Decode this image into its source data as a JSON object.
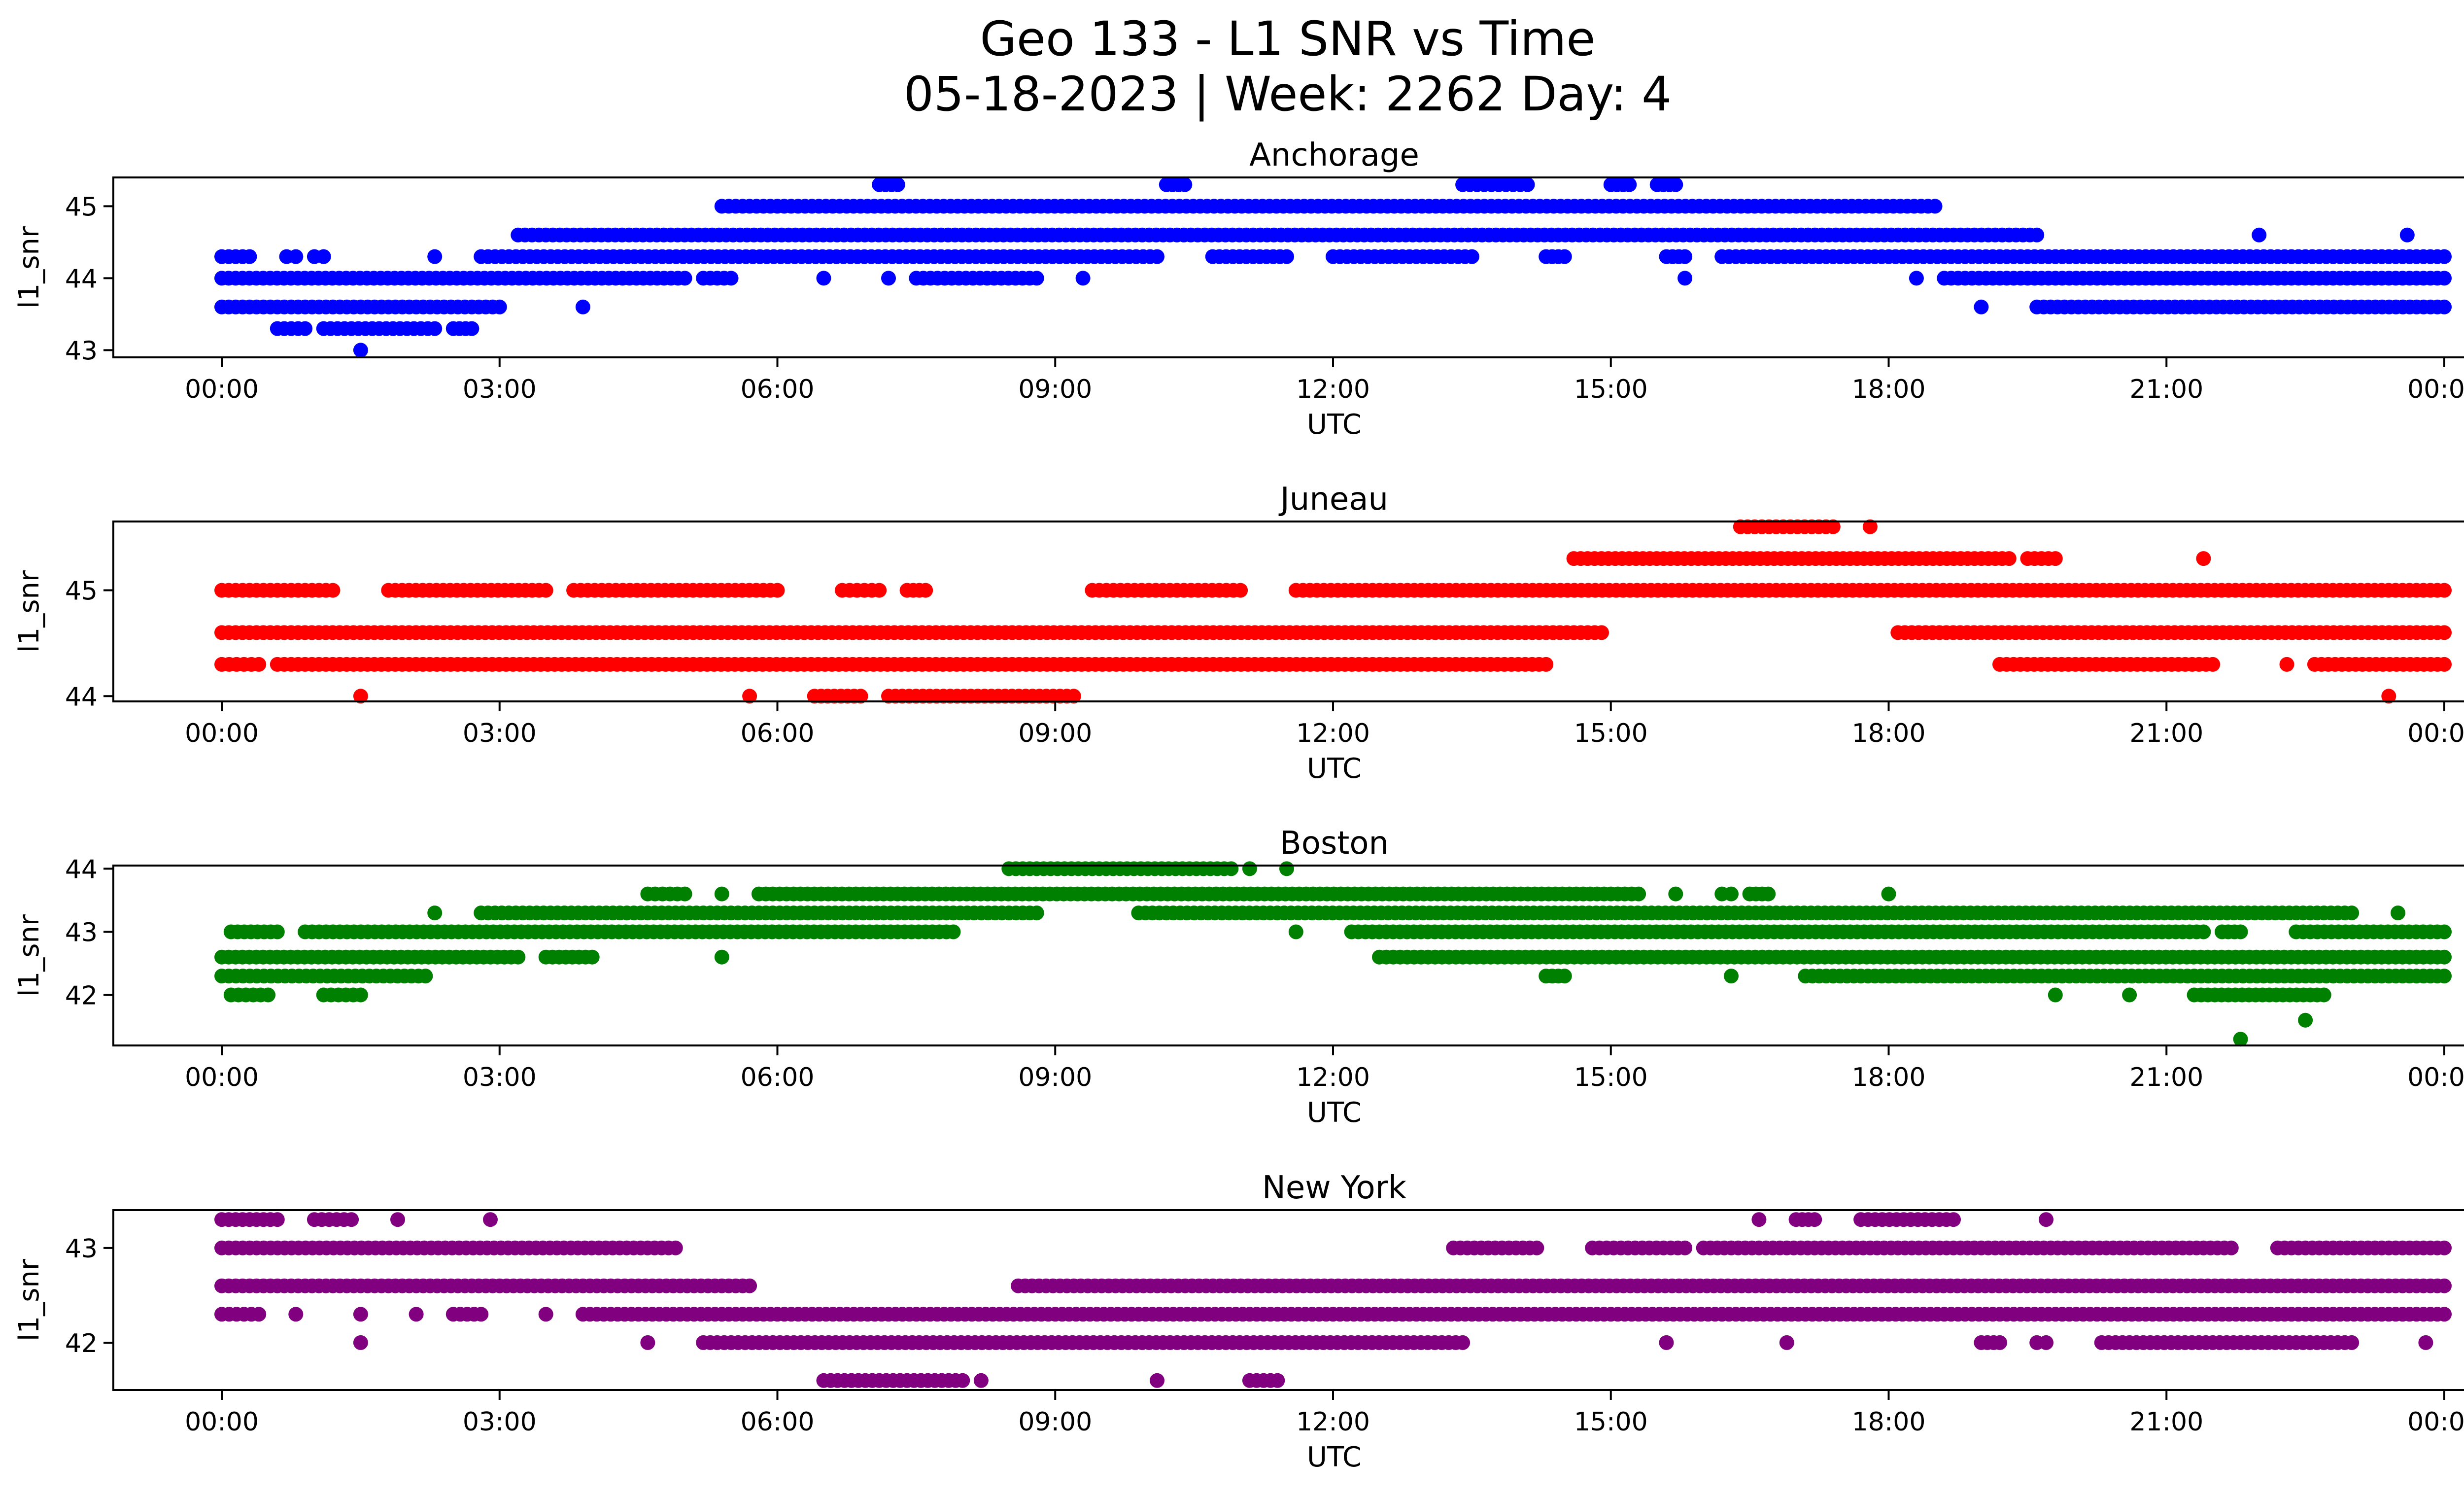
{
  "figure": {
    "title_line1": "Geo 133 - L1 SNR vs Time",
    "title_line2": "05-18-2023 | Week: 2262 Day: 4"
  },
  "chart_data": [
    {
      "type": "scatter",
      "title": "Anchorage",
      "xlabel": "UTC",
      "ylabel": "l1_snr",
      "color": "#0000ff",
      "xlim": [
        "00:00",
        "24:00"
      ],
      "x_ticks": [
        "00:00",
        "03:00",
        "06:00",
        "09:00",
        "12:00",
        "15:00",
        "18:00",
        "21:00",
        "00:00"
      ],
      "ylim": [
        42.9,
        45.4
      ],
      "y_ticks": [
        43,
        44,
        45
      ],
      "points_note": "x values in hours UTC on 05-18-2023",
      "series": [
        {
          "level": 43.0,
          "segments": [
            [
              1.5,
              1.5
            ]
          ]
        },
        {
          "level": 43.3,
          "segments": [
            [
              0.6,
              0.9
            ],
            [
              1.1,
              2.3
            ],
            [
              2.5,
              2.7
            ]
          ]
        },
        {
          "level": 43.6,
          "segments": [
            [
              0.0,
              3.0
            ],
            [
              3.9,
              3.9
            ],
            [
              19.0,
              19.0
            ],
            [
              19.6,
              24.0
            ]
          ]
        },
        {
          "level": 44.0,
          "segments": [
            [
              0.0,
              5.0
            ],
            [
              5.2,
              5.5
            ],
            [
              6.5,
              6.5
            ],
            [
              7.2,
              7.2
            ],
            [
              7.5,
              8.8
            ],
            [
              9.3,
              9.3
            ],
            [
              15.8,
              15.8
            ],
            [
              18.3,
              18.3
            ],
            [
              18.6,
              24.0
            ]
          ]
        },
        {
          "level": 44.3,
          "segments": [
            [
              0.0,
              0.3
            ],
            [
              0.7,
              0.8
            ],
            [
              1.0,
              1.1
            ],
            [
              2.3,
              2.3
            ],
            [
              2.8,
              10.1
            ],
            [
              10.7,
              11.5
            ],
            [
              12.0,
              13.5
            ],
            [
              14.3,
              14.5
            ],
            [
              15.6,
              15.8
            ],
            [
              16.2,
              24.0
            ]
          ]
        },
        {
          "level": 44.6,
          "segments": [
            [
              3.2,
              19.6
            ],
            [
              22.0,
              22.0
            ],
            [
              23.6,
              23.6
            ]
          ]
        },
        {
          "level": 45.0,
          "segments": [
            [
              5.4,
              18.5
            ]
          ]
        },
        {
          "level": 45.3,
          "segments": [
            [
              7.1,
              7.3
            ],
            [
              10.2,
              10.4
            ],
            [
              13.4,
              14.1
            ],
            [
              15.0,
              15.2
            ],
            [
              15.5,
              15.7
            ]
          ]
        }
      ]
    },
    {
      "type": "scatter",
      "title": "Juneau",
      "xlabel": "UTC",
      "ylabel": "l1_snr",
      "color": "#ff0000",
      "xlim": [
        "00:00",
        "24:00"
      ],
      "x_ticks": [
        "00:00",
        "03:00",
        "06:00",
        "09:00",
        "12:00",
        "15:00",
        "18:00",
        "21:00",
        "00:00"
      ],
      "ylim": [
        43.95,
        45.65
      ],
      "y_ticks": [
        44,
        45
      ],
      "points_note": "x values in hours UTC on 05-18-2023",
      "series": [
        {
          "level": 44.0,
          "segments": [
            [
              1.5,
              1.5
            ],
            [
              5.7,
              5.7
            ],
            [
              6.4,
              6.9
            ],
            [
              7.2,
              9.2
            ],
            [
              23.4,
              23.4
            ]
          ]
        },
        {
          "level": 44.3,
          "segments": [
            [
              0.0,
              0.4
            ],
            [
              0.6,
              14.3
            ],
            [
              19.2,
              21.5
            ],
            [
              22.3,
              22.3
            ],
            [
              22.6,
              24.0
            ]
          ]
        },
        {
          "level": 44.6,
          "segments": [
            [
              0.0,
              14.9
            ],
            [
              18.1,
              24.0
            ]
          ]
        },
        {
          "level": 45.0,
          "segments": [
            [
              0.0,
              1.2
            ],
            [
              1.8,
              3.5
            ],
            [
              3.8,
              6.0
            ],
            [
              6.7,
              7.1
            ],
            [
              7.4,
              7.6
            ],
            [
              9.4,
              11.0
            ],
            [
              11.6,
              24.0
            ]
          ]
        },
        {
          "level": 45.3,
          "segments": [
            [
              14.6,
              19.3
            ],
            [
              19.5,
              19.8
            ],
            [
              21.4,
              21.4
            ]
          ]
        },
        {
          "level": 45.6,
          "segments": [
            [
              16.4,
              17.4
            ],
            [
              17.8,
              17.8
            ]
          ]
        }
      ]
    },
    {
      "type": "scatter",
      "title": "Boston",
      "xlabel": "UTC",
      "ylabel": "l1_snr",
      "color": "#008000",
      "xlim": [
        "00:00",
        "24:00"
      ],
      "x_ticks": [
        "00:00",
        "03:00",
        "06:00",
        "09:00",
        "12:00",
        "15:00",
        "18:00",
        "21:00",
        "00:00"
      ],
      "ylim": [
        41.2,
        44.05
      ],
      "y_ticks": [
        42,
        43,
        44
      ],
      "points_note": "x values in hours UTC on 05-18-2023",
      "series": [
        {
          "level": 41.3,
          "segments": [
            [
              21.8,
              21.8
            ]
          ]
        },
        {
          "level": 41.6,
          "segments": [
            [
              22.5,
              22.5
            ]
          ]
        },
        {
          "level": 42.0,
          "segments": [
            [
              0.1,
              0.5
            ],
            [
              1.1,
              1.5
            ],
            [
              19.8,
              19.8
            ],
            [
              20.6,
              20.6
            ],
            [
              21.3,
              22.7
            ]
          ]
        },
        {
          "level": 42.3,
          "segments": [
            [
              0.0,
              2.2
            ],
            [
              14.3,
              14.5
            ],
            [
              16.3,
              16.3
            ],
            [
              17.1,
              24.0
            ]
          ]
        },
        {
          "level": 42.6,
          "segments": [
            [
              0.0,
              3.2
            ],
            [
              3.5,
              4.0
            ],
            [
              5.4,
              5.4
            ],
            [
              12.5,
              24.0
            ]
          ]
        },
        {
          "level": 43.0,
          "segments": [
            [
              0.1,
              0.6
            ],
            [
              0.9,
              7.9
            ],
            [
              11.6,
              11.6
            ],
            [
              12.2,
              21.4
            ],
            [
              21.6,
              21.8
            ],
            [
              22.4,
              24.0
            ]
          ]
        },
        {
          "level": 43.3,
          "segments": [
            [
              2.3,
              2.3
            ],
            [
              2.8,
              8.8
            ],
            [
              9.9,
              23.0
            ],
            [
              23.5,
              23.5
            ]
          ]
        },
        {
          "level": 43.6,
          "segments": [
            [
              4.6,
              5.0
            ],
            [
              5.4,
              5.4
            ],
            [
              5.8,
              15.3
            ],
            [
              15.7,
              15.7
            ],
            [
              16.2,
              16.3
            ],
            [
              16.5,
              16.7
            ],
            [
              18.0,
              18.0
            ]
          ]
        },
        {
          "level": 44.0,
          "segments": [
            [
              8.5,
              10.9
            ],
            [
              11.1,
              11.1
            ],
            [
              11.5,
              11.5
            ]
          ]
        }
      ]
    },
    {
      "type": "scatter",
      "title": "New York",
      "xlabel": "UTC",
      "ylabel": "l1_snr",
      "color": "#800080",
      "xlim": [
        "00:00",
        "24:00"
      ],
      "x_ticks": [
        "00:00",
        "03:00",
        "06:00",
        "09:00",
        "12:00",
        "15:00",
        "18:00",
        "21:00",
        "00:00"
      ],
      "ylim": [
        41.5,
        43.4
      ],
      "y_ticks": [
        42,
        43
      ],
      "points_note": "x values in hours UTC on 05-18-2023",
      "series": [
        {
          "level": 41.6,
          "segments": [
            [
              6.5,
              8.0
            ],
            [
              8.2,
              8.2
            ],
            [
              10.1,
              10.1
            ],
            [
              11.1,
              11.4
            ]
          ]
        },
        {
          "level": 42.0,
          "segments": [
            [
              1.5,
              1.5
            ],
            [
              4.6,
              4.6
            ],
            [
              5.2,
              13.4
            ],
            [
              15.6,
              15.6
            ],
            [
              16.9,
              16.9
            ],
            [
              19.0,
              19.2
            ],
            [
              19.6,
              19.7
            ],
            [
              20.3,
              23.0
            ],
            [
              23.8,
              23.8
            ]
          ]
        },
        {
          "level": 42.3,
          "segments": [
            [
              0.0,
              0.4
            ],
            [
              0.8,
              0.8
            ],
            [
              1.5,
              1.5
            ],
            [
              2.1,
              2.1
            ],
            [
              2.5,
              2.8
            ],
            [
              3.5,
              3.5
            ],
            [
              3.9,
              24.0
            ]
          ]
        },
        {
          "level": 42.6,
          "segments": [
            [
              0.0,
              5.7
            ],
            [
              8.6,
              24.0
            ]
          ]
        },
        {
          "level": 43.0,
          "segments": [
            [
              0.0,
              4.9
            ],
            [
              13.3,
              14.2
            ],
            [
              14.8,
              15.8
            ],
            [
              16.0,
              21.7
            ],
            [
              22.2,
              24.0
            ]
          ]
        },
        {
          "level": 43.3,
          "segments": [
            [
              0.0,
              0.6
            ],
            [
              1.0,
              1.4
            ],
            [
              1.9,
              1.9
            ],
            [
              2.9,
              2.9
            ],
            [
              16.6,
              16.6
            ],
            [
              17.0,
              17.2
            ],
            [
              17.7,
              18.7
            ],
            [
              19.7,
              19.7
            ]
          ]
        }
      ]
    }
  ]
}
